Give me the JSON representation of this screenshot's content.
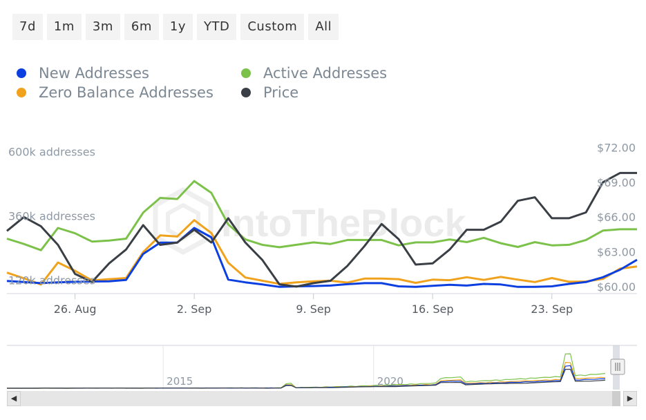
{
  "range_selector": {
    "buttons": [
      "7d",
      "1m",
      "3m",
      "6m",
      "1y",
      "YTD",
      "Custom",
      "All"
    ]
  },
  "legend": {
    "items": [
      {
        "label": "New Addresses",
        "color": "#0b3fe0"
      },
      {
        "label": "Active Addresses",
        "color": "#7cc24a"
      },
      {
        "label": "Zero Balance Addresses",
        "color": "#f0a21d"
      },
      {
        "label": "Price",
        "color": "#3a3f45"
      }
    ]
  },
  "watermark": "IntoTheBlock",
  "navigator": {
    "year_labels": [
      "2015",
      "2020"
    ],
    "left_arrow": "◀",
    "right_arrow": "▶"
  },
  "chart_data": {
    "type": "line",
    "x": [
      "2023-08-22",
      "2023-08-23",
      "2023-08-24",
      "2023-08-25",
      "2023-08-26",
      "2023-08-27",
      "2023-08-28",
      "2023-08-29",
      "2023-08-30",
      "2023-08-31",
      "2023-09-01",
      "2023-09-02",
      "2023-09-03",
      "2023-09-04",
      "2023-09-05",
      "2023-09-06",
      "2023-09-07",
      "2023-09-08",
      "2023-09-09",
      "2023-09-10",
      "2023-09-11",
      "2023-09-12",
      "2023-09-13",
      "2023-09-14",
      "2023-09-15",
      "2023-09-16",
      "2023-09-17",
      "2023-09-18",
      "2023-09-19",
      "2023-09-20",
      "2023-09-21",
      "2023-09-22",
      "2023-09-23",
      "2023-09-24",
      "2023-09-25",
      "2023-09-26",
      "2023-09-27",
      "2023-09-28"
    ],
    "x_ticks": [
      {
        "date": "2023-08-26",
        "label": "26. Aug"
      },
      {
        "date": "2023-09-02",
        "label": "2. Sep"
      },
      {
        "date": "2023-09-09",
        "label": "9. Sep"
      },
      {
        "date": "2023-09-16",
        "label": "16. Sep"
      },
      {
        "date": "2023-09-23",
        "label": "23. Sep"
      }
    ],
    "y_left": {
      "range": [
        70000,
        650000
      ],
      "ticks": [
        {
          "value": 120000,
          "label": "120k addresses"
        },
        {
          "value": 360000,
          "label": "360k addresses"
        },
        {
          "value": 600000,
          "label": "600k addresses"
        }
      ]
    },
    "y_right": {
      "range": [
        59.4,
        72.8
      ],
      "ticks": [
        {
          "value": 60,
          "label": "$60.00"
        },
        {
          "value": 63,
          "label": "$63.00"
        },
        {
          "value": 66,
          "label": "$66.00"
        },
        {
          "value": 69,
          "label": "$69.00"
        },
        {
          "value": 72,
          "label": "$72.00"
        }
      ]
    },
    "grid": true,
    "legend_position": "top-left",
    "series": [
      {
        "name": "New Addresses",
        "axis": "left",
        "color": "#0b3fe0",
        "values": [
          117000,
          113000,
          109000,
          112000,
          114000,
          115000,
          116000,
          121000,
          218000,
          260000,
          260000,
          315000,
          280000,
          122000,
          112000,
          104000,
          95000,
          97000,
          98000,
          100000,
          105000,
          109000,
          109000,
          97000,
          95000,
          99000,
          103000,
          100000,
          106000,
          104000,
          95000,
          95000,
          97000,
          106000,
          113000,
          131000,
          159000,
          196000
        ]
      },
      {
        "name": "Active Addresses",
        "axis": "left",
        "color": "#7cc24a",
        "values": [
          275000,
          255000,
          232000,
          315000,
          295000,
          264000,
          268000,
          275000,
          372000,
          427000,
          423000,
          490000,
          446000,
          328000,
          272000,
          252000,
          243000,
          252000,
          261000,
          255000,
          270000,
          270000,
          270000,
          250000,
          261000,
          261000,
          272000,
          262000,
          278000,
          258000,
          244000,
          262000,
          250000,
          252000,
          270000,
          305000,
          310000,
          310000
        ]
      },
      {
        "name": "Zero Balance Addresses",
        "axis": "left",
        "color": "#f0a21d",
        "values": [
          148000,
          127000,
          104000,
          186000,
          155000,
          119000,
          124000,
          128000,
          225000,
          287000,
          283000,
          344000,
          296000,
          185000,
          130000,
          118000,
          106000,
          112000,
          116000,
          118000,
          111000,
          126000,
          126000,
          124000,
          110000,
          122000,
          120000,
          131000,
          121000,
          132000,
          122000,
          113000,
          128000,
          114000,
          115000,
          125000,
          163000,
          171000
        ]
      },
      {
        "name": "Price",
        "axis": "right",
        "color": "#3a3f45",
        "values": [
          64.8,
          66.0,
          65.2,
          63.6,
          61.1,
          60.4,
          62.0,
          63.2,
          65.3,
          63.6,
          63.8,
          64.9,
          63.8,
          65.9,
          63.8,
          62.3,
          60.2,
          60.0,
          60.3,
          60.5,
          61.8,
          63.5,
          65.4,
          64.1,
          61.9,
          62.0,
          63.2,
          64.9,
          64.9,
          65.6,
          67.4,
          67.7,
          65.9,
          65.9,
          66.4,
          69.0,
          69.8,
          69.8
        ]
      }
    ],
    "navigator": {
      "years": [
        {
          "year": 2015,
          "frac": 0.248
        },
        {
          "year": 2020,
          "frac": 0.582
        }
      ]
    }
  }
}
